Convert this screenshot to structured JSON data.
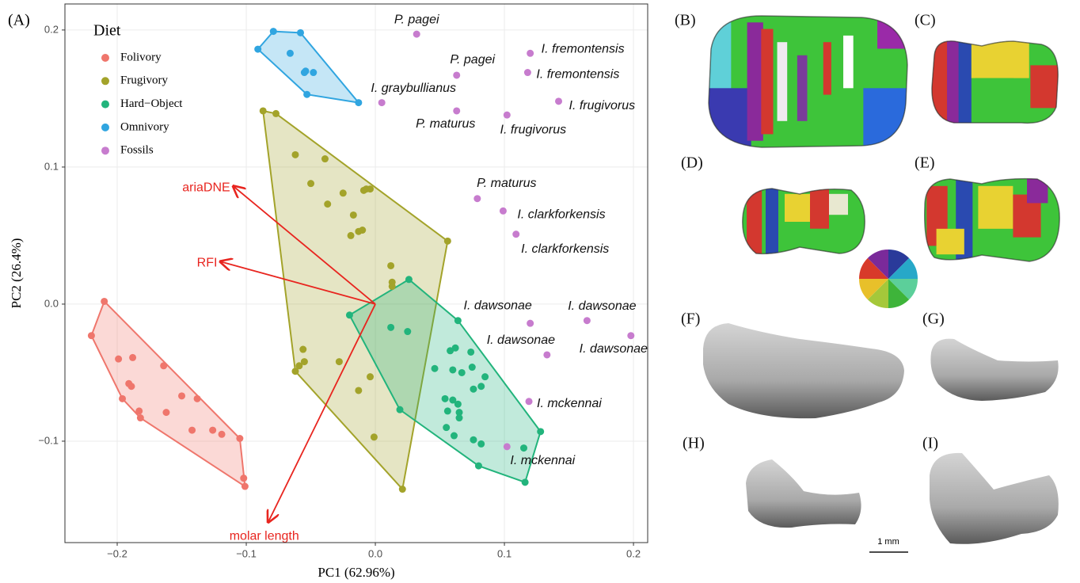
{
  "chart_data": {
    "type": "scatter",
    "panel_label": "(A)",
    "x_label": "PC1 (62.96%)",
    "y_label": "PC2 (26.4%)",
    "legend_title": "Diet",
    "legend_position": "top-left",
    "grid": true,
    "hulls": true,
    "xlim": [
      -0.2405,
      0.211
    ],
    "ylim": [
      -0.174,
      0.219
    ],
    "xticks": [
      {
        "value": -0.2,
        "label": "−0.2"
      },
      {
        "value": -0.1,
        "label": "−0.1"
      },
      {
        "value": 0,
        "label": "0.0"
      },
      0.1,
      0.2
    ],
    "yticks": [
      {
        "value": -0.1,
        "label": "−0.1"
      },
      {
        "value": 0,
        "label": "0.0"
      },
      0.1,
      0.2
    ],
    "series": [
      {
        "name": "Folivory",
        "color": "#ef766c",
        "hull": true,
        "x": [
          -0.21,
          -0.22,
          -0.199,
          -0.188,
          -0.191,
          -0.189,
          -0.196,
          -0.183,
          -0.182,
          -0.164,
          -0.15,
          -0.138,
          -0.142,
          -0.126,
          -0.119,
          -0.105,
          -0.102,
          -0.101,
          -0.162
        ],
        "values": [
          0.002,
          -0.023,
          -0.04,
          -0.039,
          -0.058,
          -0.06,
          -0.069,
          -0.078,
          -0.083,
          -0.045,
          -0.067,
          -0.069,
          -0.092,
          -0.092,
          -0.095,
          -0.098,
          -0.127,
          -0.133,
          -0.079
        ]
      },
      {
        "name": "Frugivory",
        "color": "#a3a32a",
        "hull": true,
        "x": [
          -0.087,
          -0.077,
          -0.062,
          -0.039,
          -0.05,
          -0.037,
          -0.025,
          -0.009,
          -0.007,
          -0.004,
          -0.017,
          -0.01,
          -0.013,
          -0.019,
          0.012,
          0.013,
          0.013,
          0.056,
          -0.056,
          -0.055,
          -0.059,
          -0.062,
          -0.028,
          -0.004,
          -0.013,
          -0.001,
          0.021
        ],
        "values": [
          0.141,
          0.139,
          0.109,
          0.106,
          0.088,
          0.073,
          0.081,
          0.083,
          0.084,
          0.084,
          0.065,
          0.054,
          0.053,
          0.05,
          0.028,
          0.016,
          0.013,
          0.046,
          -0.033,
          -0.042,
          -0.045,
          -0.049,
          -0.042,
          -0.053,
          -0.063,
          -0.097,
          -0.135
        ]
      },
      {
        "name": "Hard−Object",
        "color": "#22b47c",
        "hull": true,
        "x": [
          0.026,
          -0.02,
          0.012,
          0.025,
          0.064,
          0.062,
          0.058,
          0.074,
          0.075,
          0.06,
          0.046,
          0.067,
          0.085,
          0.082,
          0.076,
          0.054,
          0.06,
          0.064,
          0.065,
          0.056,
          0.065,
          0.061,
          0.055,
          0.076,
          0.082,
          0.08,
          0.115,
          0.128,
          0.116,
          0.019
        ],
        "values": [
          0.018,
          -0.008,
          -0.017,
          -0.02,
          -0.012,
          -0.032,
          -0.034,
          -0.035,
          -0.046,
          -0.048,
          -0.047,
          -0.05,
          -0.053,
          -0.06,
          -0.062,
          -0.069,
          -0.07,
          -0.073,
          -0.079,
          -0.078,
          -0.083,
          -0.096,
          -0.09,
          -0.099,
          -0.102,
          -0.118,
          -0.105,
          -0.093,
          -0.13,
          -0.077
        ]
      },
      {
        "name": "Omnivory",
        "color": "#30a5e0",
        "hull": true,
        "x": [
          -0.079,
          -0.091,
          -0.058,
          -0.066,
          -0.054,
          -0.055,
          -0.048,
          -0.053,
          -0.013
        ],
        "values": [
          0.199,
          0.186,
          0.198,
          0.183,
          0.17,
          0.169,
          0.169,
          0.153,
          0.147
        ]
      },
      {
        "name": "Fossils",
        "color": "#c77cce",
        "hull": false,
        "x": [
          0.032,
          0.063,
          0.12,
          0.118,
          0.005,
          0.063,
          0.102,
          0.142,
          0.079,
          0.099,
          0.109,
          0.12,
          0.164,
          0.198,
          0.133,
          0.119,
          0.102
        ],
        "values": [
          0.197,
          0.167,
          0.183,
          0.169,
          0.147,
          0.141,
          0.138,
          0.148,
          0.077,
          0.068,
          0.051,
          -0.014,
          -0.012,
          -0.023,
          -0.037,
          -0.071,
          -0.104
        ],
        "labels": [
          "P. pagei",
          "P. pagei",
          "I. fremontensis",
          "I. fremontensis",
          "I. graybullianus",
          "P. maturus",
          "I. frugivorus",
          "I. frugivorus",
          "P. maturus",
          "I. clarkforkensis",
          "I. clarkforkensis",
          "I. dawsonae",
          "I. dawsonae",
          "I. dawsonae",
          "I. dawsonae",
          "I. mckennai",
          "I. mckennai"
        ]
      }
    ],
    "loading_color": "#e8251f",
    "loadings": [
      {
        "name": "ariaDNE",
        "x": -0.11,
        "y": 0.086
      },
      {
        "name": "RFI",
        "x": -0.12,
        "y": 0.031
      },
      {
        "name": "molar length",
        "x": -0.083,
        "y": -0.159
      }
    ]
  },
  "panels": [
    "(B)",
    "(C)",
    "(D)",
    "(E)",
    "(F)",
    "(G)",
    "(H)",
    "(I)"
  ],
  "scale_bar": "1 mm"
}
